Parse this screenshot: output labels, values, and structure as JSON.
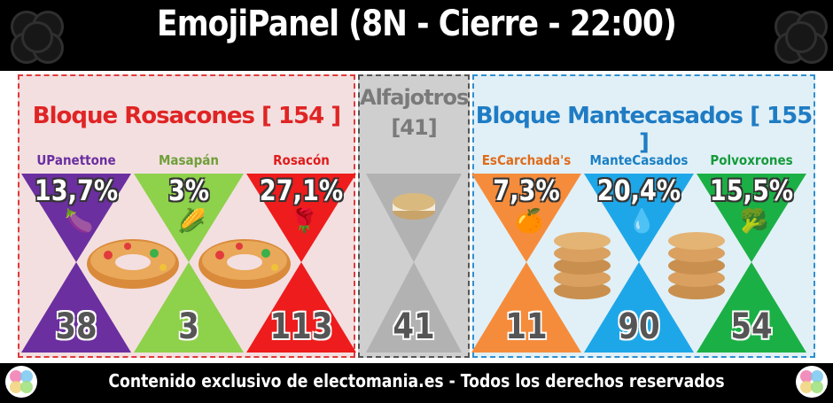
{
  "title": "EmojiPanel (8N - Cierre - 22:00)",
  "footer": "Contenido exclusivo de electomania.es - Todos los derechos reservados",
  "blocks": {
    "left": {
      "title": "Bloque Rosacones [ 154 ]",
      "color": "#e02424"
    },
    "middle": {
      "title_line1": "Alfajotros",
      "title_line2": "[41]",
      "color": "#7a7a7a"
    },
    "right": {
      "title": "Bloque Mantecasados [ 155 ]",
      "color": "#1f7cc4"
    }
  },
  "parties": [
    {
      "name": "UPanettone",
      "pct": "13,7%",
      "seats": "38",
      "color": "#6b2fa0",
      "name_color": "#6b2fa0",
      "emoji": "🍆",
      "icon": "eggplant-icon"
    },
    {
      "name": "Masapán",
      "pct": "3%",
      "seats": "3",
      "color": "#8ed14b",
      "name_color": "#6f9f3a",
      "emoji": "🌽",
      "icon": "corn-icon"
    },
    {
      "name": "Rosacón",
      "pct": "27,1%",
      "seats": "113",
      "color": "#ee1c1c",
      "name_color": "#e01b1b",
      "emoji": "🌹",
      "icon": "rose-icon"
    },
    {
      "name": "",
      "pct": "",
      "seats": "41",
      "color": "#a8a8a8",
      "name_color": "#7a7a7a",
      "emoji": "",
      "icon": "alfajor-icon"
    },
    {
      "name": "EsCarchada's",
      "pct": "7,3%",
      "seats": "11",
      "color": "#f58c3c",
      "name_color": "#e06b1a",
      "emoji": "🍊",
      "icon": "orange-icon"
    },
    {
      "name": "ManteCasados",
      "pct": "20,4%",
      "seats": "90",
      "color": "#1ea7e8",
      "name_color": "#1a7fc4",
      "emoji": "💧",
      "icon": "droplet-icon"
    },
    {
      "name": "Polvoxrones",
      "pct": "15,5%",
      "seats": "54",
      "color": "#1bb045",
      "name_color": "#169a3b",
      "emoji": "🥦",
      "icon": "broccoli-icon"
    }
  ]
}
